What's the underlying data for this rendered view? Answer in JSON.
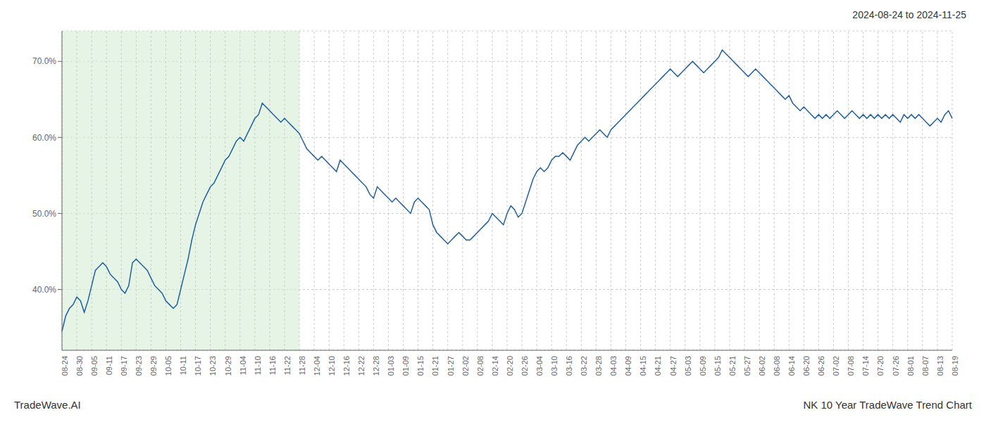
{
  "chart_data": {
    "type": "line",
    "title": "2024-08-24 to 2024-11-25",
    "annotations": [
      "TradeWave.AI",
      "NK 10 Year TradeWave Trend Chart"
    ],
    "color": "#2060a0",
    "grid": true,
    "ylim": [
      32,
      74
    ],
    "yticks": [
      {
        "value": 40,
        "label": "40.0%"
      },
      {
        "value": 50,
        "label": "50.0%"
      },
      {
        "value": 60,
        "label": "60.0%"
      },
      {
        "value": 70,
        "label": "70.0%"
      }
    ],
    "shade": {
      "from": "08-24",
      "to": "11-28",
      "color": "#d4ecd4"
    },
    "categories": [
      "08-24",
      null,
      null,
      null,
      "08-30",
      null,
      null,
      null,
      "09-05",
      null,
      null,
      null,
      "09-11",
      null,
      null,
      null,
      "09-17",
      null,
      null,
      null,
      "09-23",
      null,
      null,
      null,
      "09-29",
      null,
      null,
      null,
      "10-05",
      null,
      null,
      null,
      "10-11",
      null,
      null,
      null,
      "10-17",
      null,
      null,
      null,
      "10-23",
      null,
      null,
      null,
      "10-29",
      null,
      null,
      null,
      "11-04",
      null,
      null,
      null,
      "11-10",
      null,
      null,
      null,
      "11-16",
      null,
      null,
      null,
      "11-22",
      null,
      null,
      null,
      "11-28",
      null,
      null,
      null,
      "12-04",
      null,
      null,
      null,
      "12-10",
      null,
      null,
      null,
      "12-16",
      null,
      null,
      null,
      "12-22",
      null,
      null,
      null,
      "12-28",
      null,
      null,
      null,
      "01-03",
      null,
      null,
      null,
      "01-09",
      null,
      null,
      null,
      "01-15",
      null,
      null,
      null,
      "01-21",
      null,
      null,
      null,
      "01-27",
      null,
      null,
      null,
      "02-02",
      null,
      null,
      null,
      "02-08",
      null,
      null,
      null,
      "02-14",
      null,
      null,
      null,
      "02-20",
      null,
      null,
      null,
      "02-26",
      null,
      null,
      null,
      "03-04",
      null,
      null,
      null,
      "03-10",
      null,
      null,
      null,
      "03-16",
      null,
      null,
      null,
      "03-22",
      null,
      null,
      null,
      "03-28",
      null,
      null,
      null,
      "04-03",
      null,
      null,
      null,
      "04-09",
      null,
      null,
      null,
      "04-15",
      null,
      null,
      null,
      "04-21",
      null,
      null,
      null,
      "04-27",
      null,
      null,
      null,
      "05-03",
      null,
      null,
      null,
      "05-09",
      null,
      null,
      null,
      "05-15",
      null,
      null,
      null,
      "05-21",
      null,
      null,
      null,
      "05-27",
      null,
      null,
      null,
      "06-02",
      null,
      null,
      null,
      "06-08",
      null,
      null,
      null,
      "06-14",
      null,
      null,
      null,
      "06-20",
      null,
      null,
      null,
      "06-26",
      null,
      null,
      null,
      "07-02",
      null,
      null,
      null,
      "07-08",
      null,
      null,
      null,
      "07-14",
      null,
      null,
      null,
      "07-20",
      null,
      null,
      null,
      "07-26",
      null,
      null,
      null,
      "08-01",
      null,
      null,
      null,
      "08-07",
      null,
      null,
      null,
      "08-13",
      null,
      null,
      null,
      "08-19"
    ],
    "values": [
      34.5,
      36.5,
      37.5,
      38.0,
      39.0,
      38.5,
      37.0,
      38.5,
      40.5,
      42.5,
      43.0,
      43.5,
      43.0,
      42.0,
      41.5,
      41.0,
      40.0,
      39.5,
      40.5,
      43.5,
      44.0,
      43.5,
      43.0,
      42.5,
      41.5,
      40.5,
      40.0,
      39.5,
      38.5,
      38.0,
      37.5,
      38.0,
      40.0,
      42.0,
      44.0,
      46.5,
      48.5,
      50.0,
      51.5,
      52.5,
      53.5,
      54.0,
      55.0,
      56.0,
      57.0,
      57.5,
      58.5,
      59.5,
      60.0,
      59.5,
      60.5,
      61.5,
      62.5,
      63.0,
      64.5,
      64.0,
      63.5,
      63.0,
      62.5,
      62.0,
      62.5,
      62.0,
      61.5,
      61.0,
      60.5,
      59.5,
      58.5,
      58.0,
      57.5,
      57.0,
      57.5,
      57.0,
      56.5,
      56.0,
      55.5,
      57.0,
      56.5,
      56.0,
      55.5,
      55.0,
      54.5,
      54.0,
      53.5,
      52.5,
      52.0,
      53.5,
      53.0,
      52.5,
      52.0,
      51.5,
      52.0,
      51.5,
      51.0,
      50.5,
      50.0,
      51.5,
      52.0,
      51.5,
      51.0,
      50.5,
      48.5,
      47.5,
      47.0,
      46.5,
      46.0,
      46.5,
      47.0,
      47.5,
      47.0,
      46.5,
      46.5,
      47.0,
      47.5,
      48.0,
      48.5,
      49.0,
      50.0,
      49.5,
      49.0,
      48.5,
      50.0,
      51.0,
      50.5,
      49.5,
      50.0,
      51.5,
      53.0,
      54.5,
      55.5,
      56.0,
      55.5,
      56.0,
      57.0,
      57.5,
      57.5,
      58.0,
      57.5,
      57.0,
      58.0,
      59.0,
      59.5,
      60.0,
      59.5,
      60.0,
      60.5,
      61.0,
      60.5,
      60.0,
      61.0,
      61.5,
      62.0,
      62.5,
      63.0,
      63.5,
      64.0,
      64.5,
      65.0,
      65.5,
      66.0,
      66.5,
      67.0,
      67.5,
      68.0,
      68.5,
      69.0,
      68.5,
      68.0,
      68.5,
      69.0,
      69.5,
      70.0,
      69.5,
      69.0,
      68.5,
      69.0,
      69.5,
      70.0,
      70.5,
      71.5,
      71.0,
      70.5,
      70.0,
      69.5,
      69.0,
      68.5,
      68.0,
      68.5,
      69.0,
      68.5,
      68.0,
      67.5,
      67.0,
      66.5,
      66.0,
      65.5,
      65.0,
      65.5,
      64.5,
      64.0,
      63.5,
      64.0,
      63.5,
      63.0,
      62.5,
      63.0,
      62.5,
      63.0,
      62.5,
      63.0,
      63.5,
      63.0,
      62.5,
      63.0,
      63.5,
      63.0,
      62.5,
      63.0,
      62.5,
      63.0,
      62.5,
      63.0,
      62.5,
      63.0,
      62.5,
      63.0,
      62.5,
      62.0,
      63.0,
      62.5,
      63.0,
      62.5,
      63.0,
      62.5,
      62.0,
      61.5,
      62.0,
      62.5,
      62.0,
      63.0,
      63.5,
      62.5
    ]
  }
}
